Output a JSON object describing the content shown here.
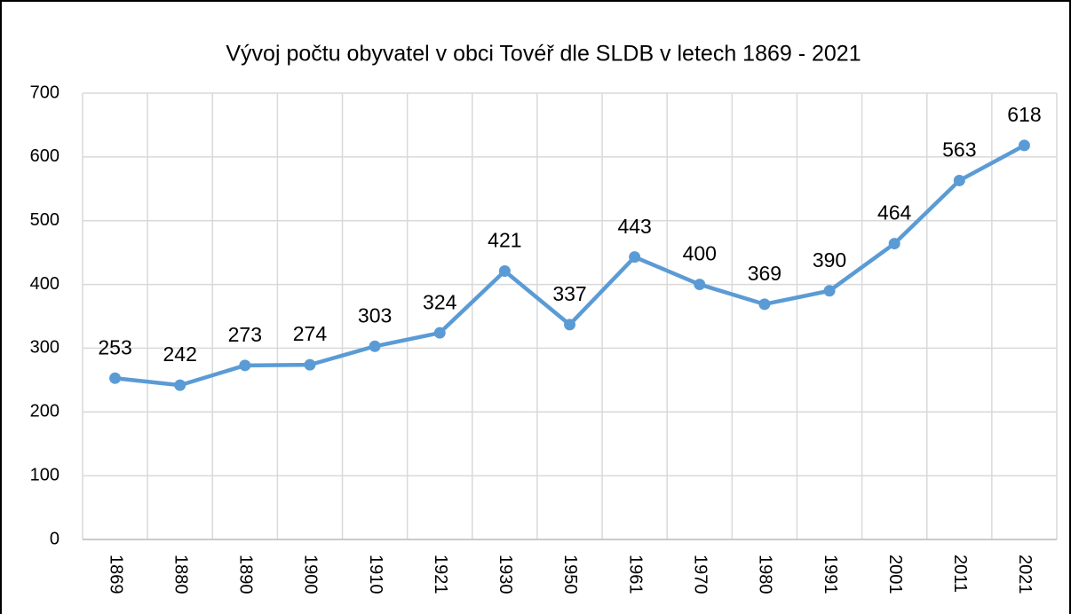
{
  "chart_data": {
    "type": "line",
    "title": "Vývoj počtu obyvatel v obci Tovéř dle SLDB v letech 1869 - 2021",
    "categories": [
      "1869",
      "1880",
      "1890",
      "1900",
      "1910",
      "1921",
      "1930",
      "1950",
      "1961",
      "1970",
      "1980",
      "1991",
      "2001",
      "2011",
      "2021"
    ],
    "values": [
      253,
      242,
      273,
      274,
      303,
      324,
      421,
      337,
      443,
      400,
      369,
      390,
      464,
      563,
      618
    ],
    "color": "#5b9bd5",
    "ylim": [
      0,
      700
    ],
    "yticks": [
      0,
      100,
      200,
      300,
      400,
      500,
      600,
      700
    ],
    "grid": true
  }
}
